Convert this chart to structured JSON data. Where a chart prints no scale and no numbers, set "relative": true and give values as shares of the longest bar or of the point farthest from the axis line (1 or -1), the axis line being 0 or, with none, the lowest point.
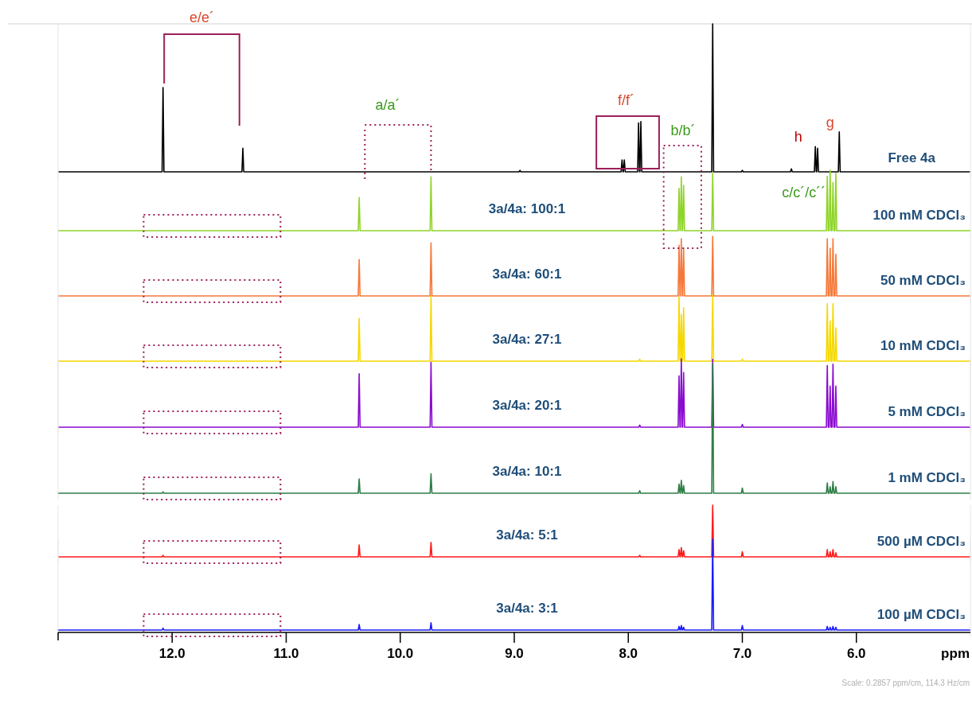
{
  "chart_data": [
    {
      "type": "line",
      "relative": true,
      "xlim": [
        13.0,
        5.0
      ],
      "tick_labels": false,
      "x": [
        13,
        12.088,
        12.08,
        12.072,
        11.388,
        11.38,
        11.372,
        8.958,
        8.95,
        8.942,
        8.063,
        8.055,
        8.047,
        8.043,
        8.035,
        8.027,
        7.918,
        7.91,
        7.902,
        7.898,
        7.89,
        7.882,
        7.268,
        7.26,
        7.252,
        7.008,
        7,
        6.992,
        6.578,
        6.57,
        6.562,
        6.368,
        6.36,
        6.352,
        6.348,
        6.34,
        6.332,
        6.158,
        6.15,
        6.142,
        5
      ],
      "series": [
        {
          "color": "#000000",
          "values": [
            0,
            0,
            0.57,
            0,
            0,
            0.16,
            0,
            0,
            0.01,
            0,
            0,
            0.08,
            0,
            0,
            0.08,
            0,
            0,
            0.33,
            0,
            0,
            0.34,
            0,
            0,
            1,
            0,
            0,
            0.01,
            0,
            0,
            0.02,
            0,
            0,
            0.17,
            0,
            0,
            0.16,
            0,
            0,
            0.27,
            0,
            0
          ]
        }
      ],
      "annotations": [
        "Free 4a",
        "e/e´",
        "a/a´",
        "f/f´",
        "b/b´",
        "h",
        "g"
      ]
    },
    {
      "type": "line",
      "relative": true,
      "xlim": [
        13.0,
        5.0
      ],
      "tick_labels": false,
      "x": [
        13,
        12.088,
        12.08,
        12.072,
        10.368,
        10.36,
        10.352,
        9.738,
        9.73,
        9.722,
        7.908,
        7.9,
        7.892,
        7.563,
        7.555,
        7.547,
        7.543,
        7.535,
        7.527,
        7.523,
        7.515,
        7.507,
        7.268,
        7.26,
        7.252,
        7.008,
        7,
        6.992,
        6.263,
        6.255,
        6.247,
        6.238,
        6.23,
        6.222,
        6.213,
        6.205,
        6.197,
        6.188,
        6.18,
        6.172,
        5
      ],
      "series": [
        {
          "color": "#8fd42a",
          "values": [
            0,
            0,
            0,
            0,
            0,
            0.55,
            0,
            0,
            0.89,
            0,
            0,
            0,
            0,
            0,
            0.7,
            0,
            0,
            0.89,
            0,
            0,
            0.75,
            0,
            0,
            0.95,
            0,
            0,
            0,
            0,
            0,
            0.9,
            0,
            0,
            1,
            0,
            0,
            0.8,
            0,
            0,
            0.95,
            0,
            0
          ]
        }
      ],
      "annotations": [
        "3a/4a: 100:1",
        "100 mM CDCl₃",
        "c/c´/c´´"
      ]
    },
    {
      "type": "line",
      "relative": true,
      "xlim": [
        13.0,
        5.0
      ],
      "tick_labels": false,
      "x": [
        13,
        12.088,
        12.08,
        12.072,
        10.368,
        10.36,
        10.352,
        9.738,
        9.73,
        9.722,
        7.908,
        7.9,
        7.892,
        7.563,
        7.555,
        7.547,
        7.543,
        7.535,
        7.527,
        7.523,
        7.515,
        7.507,
        7.268,
        7.26,
        7.252,
        7.008,
        7,
        6.992,
        6.263,
        6.255,
        6.247,
        6.238,
        6.23,
        6.222,
        6.213,
        6.205,
        6.197,
        6.188,
        6.18,
        6.172,
        5
      ],
      "series": [
        {
          "color": "#f5793a",
          "values": [
            0,
            0,
            0,
            0,
            0,
            0.61,
            0,
            0,
            0.89,
            0,
            0,
            0,
            0,
            0,
            0.85,
            0,
            0,
            0.96,
            0,
            0,
            0.8,
            0,
            0,
            1,
            0,
            0,
            0,
            0,
            0,
            0.96,
            0,
            0,
            0.8,
            0,
            0,
            0.96,
            0,
            0,
            0.7,
            0,
            0
          ]
        }
      ],
      "annotations": [
        "3a/4a: 60:1",
        "50 mM CDCl₃"
      ]
    },
    {
      "type": "line",
      "relative": true,
      "xlim": [
        13.0,
        5.0
      ],
      "tick_labels": false,
      "x": [
        13,
        12.088,
        12.08,
        12.072,
        10.368,
        10.36,
        10.352,
        9.738,
        9.73,
        9.722,
        7.908,
        7.9,
        7.892,
        7.563,
        7.555,
        7.547,
        7.543,
        7.535,
        7.527,
        7.523,
        7.515,
        7.507,
        7.268,
        7.26,
        7.252,
        7.008,
        7,
        6.992,
        6.263,
        6.255,
        6.247,
        6.238,
        6.23,
        6.222,
        6.213,
        6.205,
        6.197,
        6.188,
        6.18,
        6.172,
        5
      ],
      "series": [
        {
          "color": "#f5d800",
          "values": [
            0,
            0,
            0,
            0,
            0,
            0.64,
            0,
            0,
            0.98,
            0,
            0,
            0.03,
            0,
            0,
            0.96,
            0,
            0,
            0.7,
            0,
            0,
            0.8,
            0,
            0,
            1,
            0,
            0,
            0.03,
            0,
            0,
            0.86,
            0,
            0,
            0.6,
            0,
            0,
            0.86,
            0,
            0,
            0.5,
            0,
            0
          ]
        }
      ],
      "annotations": [
        "3a/4a: 27:1",
        "10 mM CDCl₃"
      ]
    },
    {
      "type": "line",
      "relative": true,
      "xlim": [
        13.0,
        5.0
      ],
      "tick_labels": false,
      "x": [
        13,
        12.088,
        12.08,
        12.072,
        10.368,
        10.36,
        10.352,
        9.738,
        9.73,
        9.722,
        7.908,
        7.9,
        7.892,
        7.563,
        7.555,
        7.547,
        7.543,
        7.535,
        7.527,
        7.523,
        7.515,
        7.507,
        7.268,
        7.26,
        7.252,
        7.008,
        7,
        6.992,
        6.263,
        6.255,
        6.247,
        6.238,
        6.23,
        6.222,
        6.213,
        6.205,
        6.197,
        6.188,
        6.18,
        6.172,
        5
      ],
      "series": [
        {
          "color": "#8a0ccf",
          "values": [
            0,
            0,
            0,
            0,
            0,
            0.78,
            0,
            0,
            0.95,
            0,
            0,
            0.03,
            0,
            0,
            0.75,
            0,
            0,
            1,
            0,
            0,
            0.8,
            0,
            0,
            0.99,
            0,
            0,
            0.04,
            0,
            0,
            0.9,
            0,
            0,
            0.6,
            0,
            0,
            0.92,
            0,
            0,
            0.6,
            0,
            0
          ]
        }
      ],
      "annotations": [
        "3a/4a: 20:1",
        "5 mM CDCl₃"
      ]
    },
    {
      "type": "line",
      "relative": true,
      "xlim": [
        13.0,
        5.0
      ],
      "tick_labels": false,
      "x": [
        13,
        12.088,
        12.08,
        12.072,
        10.368,
        10.36,
        10.352,
        9.738,
        9.73,
        9.722,
        7.908,
        7.9,
        7.892,
        7.563,
        7.555,
        7.547,
        7.543,
        7.535,
        7.527,
        7.523,
        7.515,
        7.507,
        7.268,
        7.26,
        7.252,
        7.008,
        7,
        6.992,
        6.263,
        6.255,
        6.247,
        6.238,
        6.23,
        6.222,
        6.213,
        6.205,
        6.197,
        6.188,
        6.18,
        6.172,
        5
      ],
      "series": [
        {
          "color": "#2e7d46",
          "values": [
            0,
            0,
            0.01,
            0,
            0,
            0.11,
            0,
            0,
            0.15,
            0,
            0,
            0.02,
            0,
            0,
            0.07,
            0,
            0,
            0.1,
            0,
            0,
            0.06,
            0,
            0,
            1,
            0,
            0,
            0.04,
            0,
            0,
            0.08,
            0,
            0,
            0.05,
            0,
            0,
            0.09,
            0,
            0,
            0.05,
            0,
            0
          ]
        }
      ],
      "annotations": [
        "3a/4a: 10:1",
        "1 mM CDCl₃"
      ]
    },
    {
      "type": "line",
      "relative": true,
      "xlim": [
        13.0,
        5.0
      ],
      "tick_labels": false,
      "x": [
        13,
        12.088,
        12.08,
        12.072,
        10.368,
        10.36,
        10.352,
        9.738,
        9.73,
        9.722,
        7.908,
        7.9,
        7.892,
        7.563,
        7.555,
        7.547,
        7.543,
        7.535,
        7.527,
        7.523,
        7.515,
        7.507,
        7.268,
        7.26,
        7.252,
        7.008,
        7,
        6.992,
        6.263,
        6.255,
        6.247,
        6.238,
        6.23,
        6.222,
        6.213,
        6.205,
        6.197,
        6.188,
        6.18,
        6.172,
        5
      ],
      "series": [
        {
          "color": "#ff1a1a",
          "values": [
            0,
            0,
            0.03,
            0,
            0,
            0.23,
            0,
            0,
            0.28,
            0,
            0,
            0.03,
            0,
            0,
            0.14,
            0,
            0,
            0.18,
            0,
            0,
            0.12,
            0,
            0,
            1,
            0,
            0,
            0.1,
            0,
            0,
            0.14,
            0,
            0,
            0.1,
            0,
            0,
            0.14,
            0,
            0,
            0.08,
            0,
            0
          ]
        }
      ],
      "annotations": [
        "3a/4a: 5:1",
        "500 µM CDCl₃"
      ]
    },
    {
      "type": "line",
      "relative": true,
      "xlim": [
        13.0,
        5.0
      ],
      "tick_labels": "x",
      "xlabel": "ppm",
      "xticks": [
        {
          "value": 13.0,
          "label": null
        },
        {
          "value": 12.0,
          "label": "12.0"
        },
        {
          "value": 11.0,
          "label": "11.0"
        },
        {
          "value": 10.0,
          "label": "10.0"
        },
        {
          "value": 9.0,
          "label": "9.0"
        },
        {
          "value": 8.0,
          "label": "8.0"
        },
        {
          "value": 7.0,
          "label": "7.0"
        },
        {
          "value": 6.0,
          "label": "6.0"
        }
      ],
      "x": [
        13,
        12.088,
        12.08,
        12.072,
        10.368,
        10.36,
        10.352,
        9.738,
        9.73,
        9.722,
        7.908,
        7.9,
        7.892,
        7.563,
        7.555,
        7.547,
        7.543,
        7.535,
        7.527,
        7.523,
        7.515,
        7.507,
        7.268,
        7.26,
        7.252,
        7.008,
        7,
        6.992,
        6.263,
        6.255,
        6.247,
        6.238,
        6.23,
        6.222,
        6.213,
        6.205,
        6.197,
        6.188,
        6.18,
        6.172,
        5
      ],
      "series": [
        {
          "color": "#1a1aff",
          "values": [
            0,
            0,
            0.02,
            0,
            0,
            0.06,
            0,
            0,
            0.08,
            0,
            0,
            0,
            0,
            0,
            0.04,
            0,
            0,
            0.05,
            0,
            0,
            0.03,
            0,
            0,
            1,
            0,
            0,
            0.05,
            0,
            0,
            0.04,
            0,
            0,
            0.03,
            0,
            0,
            0.04,
            0,
            0,
            0.03,
            0,
            0
          ]
        }
      ],
      "annotations": [
        "3a/4a: 3:1",
        "100 µM CDCl₃",
        "Scale: 0.2857 ppm/cm, 114.3 Hz/cm"
      ]
    }
  ]
}
